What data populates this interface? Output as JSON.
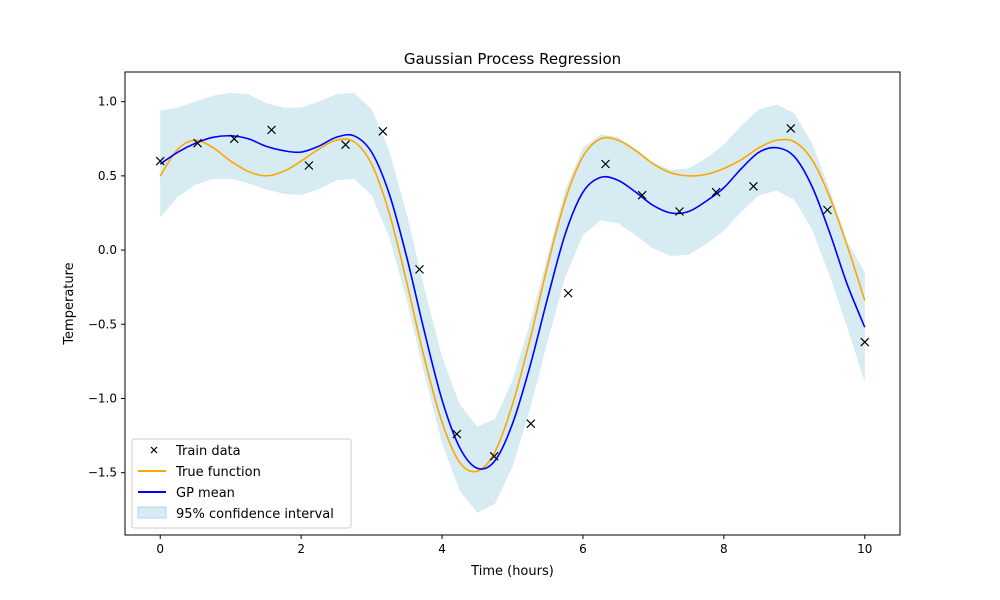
{
  "chart_data": {
    "type": "line",
    "title": "Gaussian Process Regression",
    "xlabel": "Time (hours)",
    "ylabel": "Temperature",
    "xlim": [
      -0.5,
      10.5
    ],
    "ylim": [
      -1.92,
      1.2
    ],
    "grid": false,
    "legend_position": "lower-left",
    "x_ticks": [
      0,
      2,
      4,
      6,
      8,
      10
    ],
    "x_tick_labels": [
      "0",
      "2",
      "4",
      "6",
      "8",
      "10"
    ],
    "y_ticks": [
      1.0,
      0.5,
      0.0,
      -0.5,
      -1.0,
      -1.5
    ],
    "y_tick_labels": [
      "1.0",
      "0.5",
      "0.0",
      "−0.5",
      "−1.0",
      "−1.5"
    ],
    "legend": [
      "Train data",
      "True function",
      "GP mean",
      "95% confidence interval"
    ],
    "colors": {
      "train": "#000000",
      "true_function": "#ffa500",
      "gp_mean": "#0000ff",
      "confidence": "#add8e6"
    },
    "train_data": {
      "x": [
        0.0,
        0.53,
        1.05,
        1.58,
        2.11,
        2.63,
        3.16,
        3.68,
        4.21,
        4.74,
        5.26,
        5.79,
        6.32,
        6.84,
        7.37,
        7.89,
        8.42,
        8.95,
        9.47,
        10.0
      ],
      "y": [
        0.6,
        0.72,
        0.75,
        0.81,
        0.57,
        0.71,
        0.8,
        -0.13,
        -1.24,
        -1.39,
        -1.17,
        -0.29,
        0.58,
        0.37,
        0.26,
        0.39,
        0.43,
        0.82,
        0.27,
        -0.62
      ]
    },
    "true_function": {
      "x": [
        0,
        0.25,
        0.5,
        0.75,
        1.0,
        1.25,
        1.5,
        1.75,
        2.0,
        2.25,
        2.5,
        2.75,
        3.0,
        3.25,
        3.5,
        3.75,
        4.0,
        4.25,
        4.5,
        4.75,
        5.0,
        5.25,
        5.5,
        5.75,
        6.0,
        6.25,
        6.5,
        6.75,
        7.0,
        7.25,
        7.5,
        7.75,
        8.0,
        8.25,
        8.5,
        8.75,
        9.0,
        9.25,
        9.5,
        9.75,
        10.0
      ],
      "y": [
        0.5,
        0.68,
        0.74,
        0.69,
        0.6,
        0.53,
        0.5,
        0.53,
        0.6,
        0.68,
        0.74,
        0.73,
        0.58,
        0.25,
        -0.22,
        -0.73,
        -1.16,
        -1.43,
        -1.49,
        -1.36,
        -1.04,
        -0.6,
        -0.1,
        0.34,
        0.63,
        0.75,
        0.74,
        0.67,
        0.58,
        0.52,
        0.5,
        0.51,
        0.55,
        0.61,
        0.69,
        0.74,
        0.73,
        0.61,
        0.36,
        0.03,
        -0.34
      ]
    },
    "gp_mean": {
      "x": [
        0,
        0.25,
        0.5,
        0.75,
        1.0,
        1.25,
        1.5,
        1.75,
        2.0,
        2.25,
        2.5,
        2.75,
        3.0,
        3.25,
        3.5,
        3.75,
        4.0,
        4.25,
        4.5,
        4.75,
        5.0,
        5.25,
        5.5,
        5.75,
        6.0,
        6.25,
        6.5,
        6.75,
        7.0,
        7.25,
        7.5,
        7.75,
        8.0,
        8.25,
        8.5,
        8.75,
        9.0,
        9.25,
        9.5,
        9.75,
        10.0
      ],
      "y": [
        0.58,
        0.66,
        0.72,
        0.76,
        0.77,
        0.75,
        0.7,
        0.67,
        0.66,
        0.7,
        0.76,
        0.77,
        0.66,
        0.38,
        -0.05,
        -0.55,
        -1.01,
        -1.33,
        -1.47,
        -1.42,
        -1.17,
        -0.78,
        -0.32,
        0.11,
        0.39,
        0.49,
        0.47,
        0.39,
        0.3,
        0.25,
        0.26,
        0.33,
        0.42,
        0.55,
        0.66,
        0.69,
        0.63,
        0.43,
        0.12,
        -0.23,
        -0.52
      ]
    },
    "confidence_interval": {
      "x": [
        0,
        0.25,
        0.5,
        0.75,
        1.0,
        1.25,
        1.5,
        1.75,
        2.0,
        2.25,
        2.5,
        2.75,
        3.0,
        3.25,
        3.5,
        3.75,
        4.0,
        4.25,
        4.5,
        4.75,
        5.0,
        5.25,
        5.5,
        5.75,
        6.0,
        6.25,
        6.5,
        6.75,
        7.0,
        7.25,
        7.5,
        7.75,
        8.0,
        8.25,
        8.5,
        8.75,
        9.0,
        9.25,
        9.5,
        9.75,
        10.0
      ],
      "upper": [
        0.94,
        0.96,
        1.0,
        1.04,
        1.06,
        1.05,
        0.99,
        0.96,
        0.96,
        1.0,
        1.05,
        1.06,
        0.95,
        0.67,
        0.24,
        -0.26,
        -0.72,
        -1.04,
        -1.19,
        -1.14,
        -0.88,
        -0.49,
        -0.03,
        0.41,
        0.69,
        0.78,
        0.76,
        0.68,
        0.59,
        0.54,
        0.55,
        0.62,
        0.71,
        0.84,
        0.95,
        0.98,
        0.92,
        0.72,
        0.41,
        0.06,
        -0.15
      ],
      "lower": [
        0.22,
        0.36,
        0.44,
        0.48,
        0.48,
        0.45,
        0.41,
        0.38,
        0.37,
        0.41,
        0.47,
        0.48,
        0.37,
        0.09,
        -0.34,
        -0.84,
        -1.3,
        -1.62,
        -1.77,
        -1.71,
        -1.46,
        -1.07,
        -0.61,
        -0.18,
        0.1,
        0.2,
        0.18,
        0.1,
        0.01,
        -0.04,
        -0.03,
        0.04,
        0.13,
        0.26,
        0.37,
        0.4,
        0.34,
        0.14,
        -0.17,
        -0.52,
        -0.89
      ]
    }
  }
}
